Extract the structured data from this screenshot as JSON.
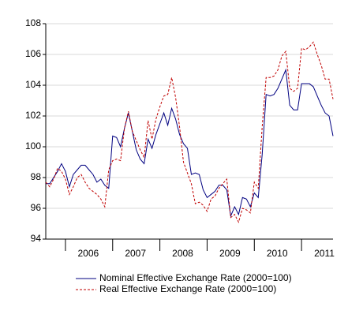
{
  "chart_data": {
    "type": "line",
    "categories": [
      null,
      null,
      null,
      null,
      null,
      null,
      null,
      null,
      null,
      null,
      null,
      "2006",
      null,
      null,
      null,
      null,
      null,
      null,
      null,
      null,
      null,
      null,
      null,
      "2007",
      null,
      null,
      null,
      null,
      null,
      null,
      null,
      null,
      null,
      null,
      null,
      "2008",
      null,
      null,
      null,
      null,
      null,
      null,
      null,
      null,
      null,
      null,
      null,
      "2009",
      null,
      null,
      null,
      null,
      null,
      null,
      null,
      null,
      null,
      null,
      null,
      "2010",
      null,
      null,
      null,
      null,
      null,
      null,
      null,
      null,
      null,
      null,
      null,
      "2011",
      null,
      null
    ],
    "series": [
      {
        "name": "Nominal Effective Exchange Rate (2000=100)",
        "color": "#000080",
        "dash": false,
        "values": [
          97.6,
          97.6,
          98.0,
          98.4,
          98.9,
          98.4,
          97.4,
          98.2,
          98.5,
          98.8,
          98.8,
          98.5,
          98.2,
          97.7,
          97.9,
          97.5,
          97.3,
          100.7,
          100.6,
          100.0,
          101.2,
          102.2,
          101.0,
          99.8,
          99.2,
          98.9,
          100.5,
          99.9,
          100.8,
          101.5,
          102.2,
          101.4,
          102.5,
          101.8,
          100.8,
          100.2,
          99.9,
          98.2,
          98.3,
          98.2,
          97.2,
          96.7,
          96.9,
          97.1,
          97.5,
          97.5,
          97.2,
          95.5,
          96.1,
          95.6,
          96.7,
          96.6,
          96.1,
          97.0,
          96.7,
          99.5,
          103.4,
          103.3,
          103.4,
          103.8,
          104.4,
          105.0,
          102.7,
          102.4,
          102.4,
          104.1,
          104.1,
          104.1,
          103.9,
          103.3,
          102.7,
          102.2,
          102.0,
          100.7
        ]
      },
      {
        "name": "Real Effective Exchange Rate (2000=100)",
        "color": "#c00000",
        "dash": true,
        "values": [
          97.7,
          97.4,
          97.9,
          98.6,
          98.4,
          97.9,
          96.9,
          97.4,
          98.0,
          98.2,
          97.7,
          97.3,
          97.1,
          96.9,
          96.6,
          96.1,
          98.5,
          99.1,
          99.2,
          99.1,
          101.2,
          102.3,
          101.0,
          100.4,
          99.8,
          99.3,
          101.7,
          100.5,
          101.8,
          102.6,
          103.3,
          103.4,
          104.5,
          103.2,
          101.3,
          99.0,
          98.3,
          97.6,
          96.3,
          96.4,
          96.2,
          95.8,
          96.6,
          96.8,
          97.3,
          97.6,
          97.9,
          95.4,
          95.6,
          95.1,
          96.0,
          95.9,
          95.7,
          97.7,
          97.3,
          101.3,
          104.5,
          104.5,
          104.6,
          105.0,
          105.9,
          106.2,
          103.8,
          103.6,
          103.8,
          106.4,
          106.3,
          106.5,
          106.8,
          106.0,
          105.3,
          104.4,
          104.4,
          103.1
        ]
      }
    ],
    "ylim": [
      94,
      108
    ],
    "yticks": [
      94,
      96,
      98,
      100,
      102,
      104,
      106,
      108
    ],
    "grid": true
  }
}
